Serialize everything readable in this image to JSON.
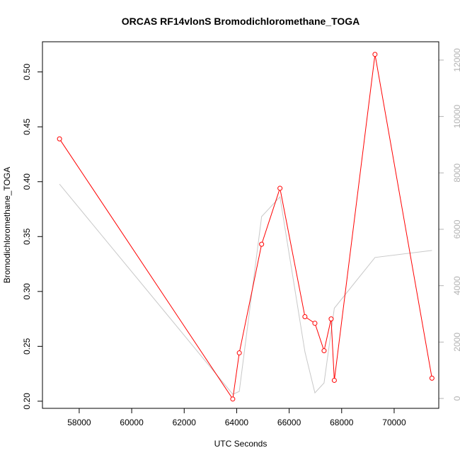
{
  "chart_data": {
    "type": "line",
    "title": "ORCAS RF14vlonS Bromodichloromethane_TOGA",
    "xlabel": "UTC Seconds",
    "ylabel": "Bromodichloromethane_TOGA",
    "xlim": [
      56600,
      71700
    ],
    "ylim": [
      0.1935,
      0.5275
    ],
    "y2lim": [
      -350,
      12650
    ],
    "x_ticks": [
      58000,
      60000,
      62000,
      64000,
      66000,
      68000,
      70000
    ],
    "x_tick_labels": [
      "58000",
      "60000",
      "62000",
      "64000",
      "66000",
      "68000",
      "70000"
    ],
    "y_ticks": [
      0.2,
      0.25,
      0.3,
      0.35,
      0.4,
      0.45,
      0.5
    ],
    "y_tick_labels": [
      "0.20",
      "0.25",
      "0.30",
      "0.35",
      "0.40",
      "0.45",
      "0.50"
    ],
    "y2_ticks": [
      0,
      2000,
      4000,
      6000,
      8000,
      10000,
      12000
    ],
    "y2_tick_labels": [
      "0",
      "2000",
      "4000",
      "6000",
      "8000",
      "10000",
      "12000"
    ],
    "grid": false,
    "series": [
      {
        "color": "#ff0000",
        "axis": "left",
        "markers": true,
        "x": [
          57250,
          63850,
          64100,
          64950,
          65650,
          66600,
          66980,
          67330,
          67600,
          67720,
          69270,
          71440
        ],
        "y": [
          0.439,
          0.202,
          0.244,
          0.343,
          0.394,
          0.277,
          0.271,
          0.246,
          0.275,
          0.219,
          0.516,
          0.221
        ]
      },
      {
        "color": "#c8c8c8",
        "axis": "right",
        "markers": false,
        "x": [
          57250,
          63850,
          64100,
          64950,
          65650,
          66600,
          66980,
          67330,
          67720,
          69270,
          71440
        ],
        "y": [
          7600,
          150,
          250,
          6450,
          7150,
          1650,
          200,
          550,
          3200,
          5000,
          5250
        ]
      }
    ]
  }
}
